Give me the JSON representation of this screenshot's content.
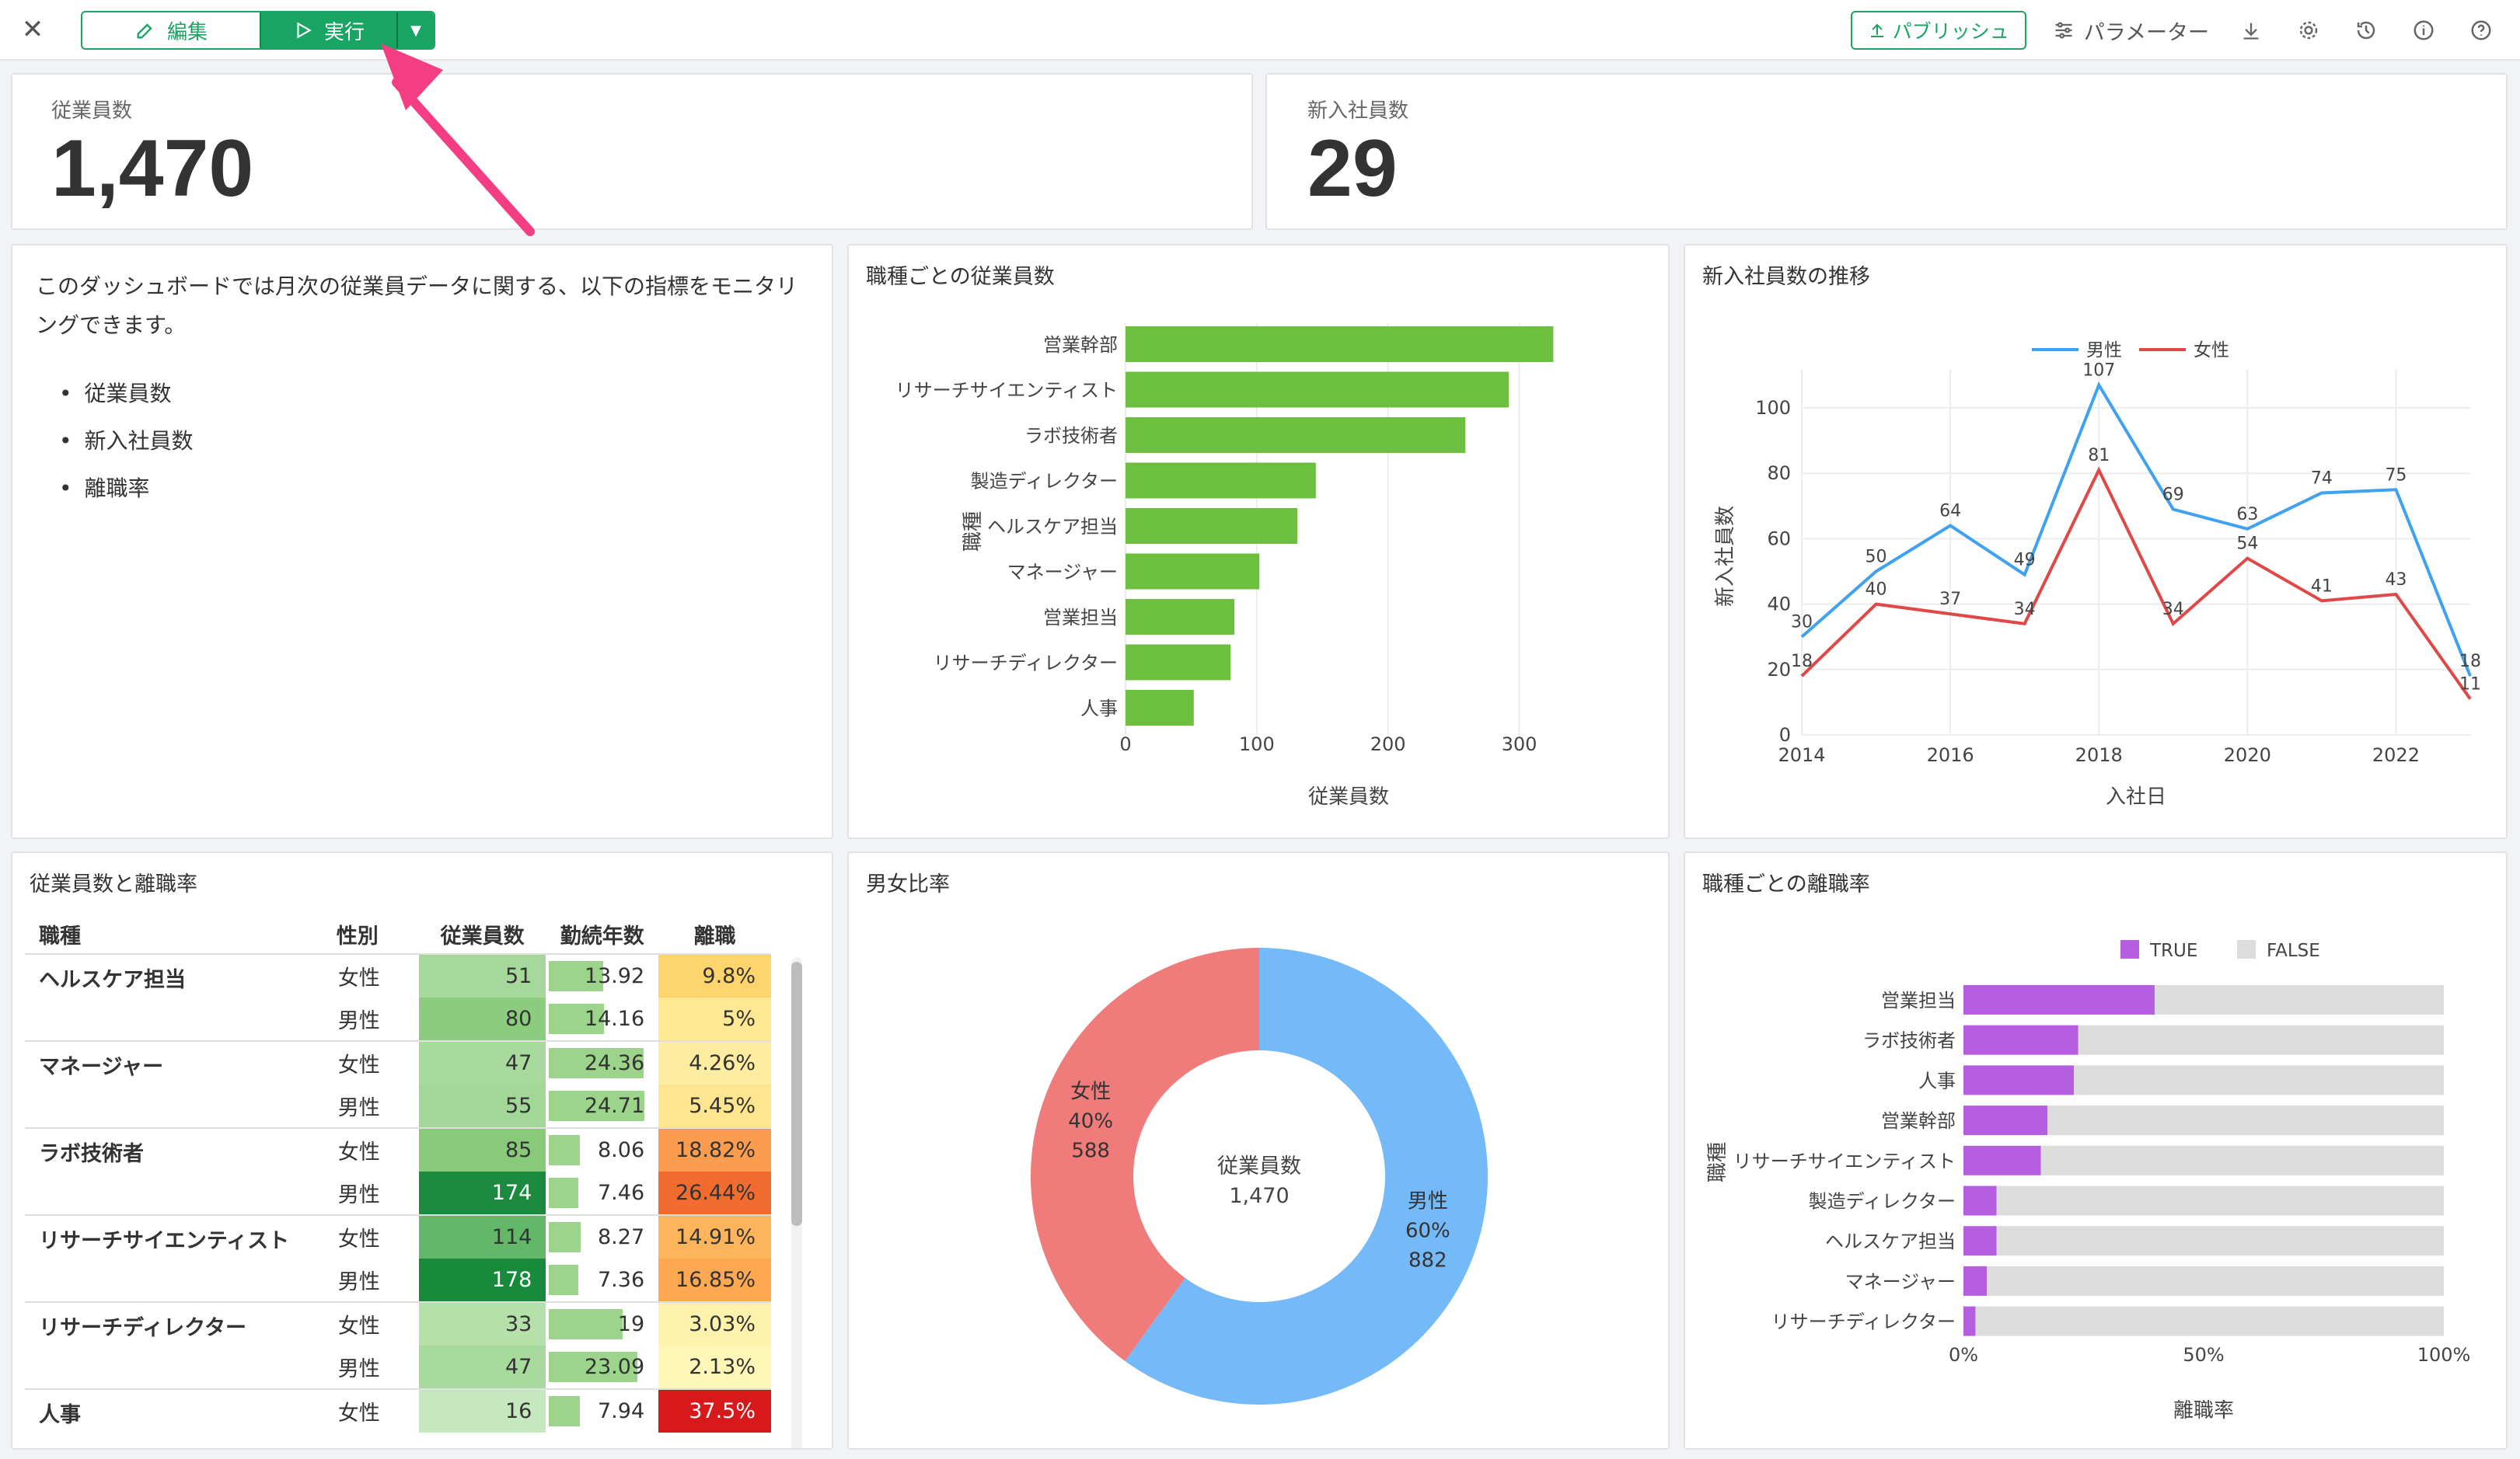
{
  "toolbar": {
    "edit_label": "編集",
    "run_label": "実行",
    "publish_label": "パブリッシュ",
    "parameter_label": "パラメーター"
  },
  "kpi": [
    {
      "label": "従業員数",
      "value": "1,470"
    },
    {
      "label": "新入社員数",
      "value": "29"
    }
  ],
  "description": {
    "text": "このダッシュボードでは月次の従業員データに関する、以下の指標をモニタリングできます。",
    "items": [
      "従業員数",
      "新入社員数",
      "離職率"
    ]
  },
  "colors": {
    "accent": "#19a463",
    "bar_green": "#6dbf3f",
    "male": "#3fa1f0",
    "female": "#e04848",
    "donut_male": "#74b9f8",
    "donut_female": "#ef7b7b",
    "true_purple": "#b55fe0",
    "false_gray": "#dcdcdc",
    "arrow": "#f43d83"
  },
  "titles": {
    "jobs_chart": "職種ごとの従業員数",
    "hires_chart": "新入社員数の推移",
    "table": "従業員数と離職率",
    "gender": "男女比率",
    "attrition": "職種ごとの離職率"
  },
  "table": {
    "headers": [
      "職種",
      "性別",
      "従業員数",
      "勤続年数",
      "離職"
    ],
    "rows": [
      {
        "job": "ヘルスケア担当",
        "sex": "女性",
        "count": "51",
        "years": "13.92",
        "rate": "9.8%",
        "count_color": "#a5d89a",
        "rate_color": "#fed46c",
        "years_frac": 0.56
      },
      {
        "job": "",
        "sex": "男性",
        "count": "80",
        "years": "14.16",
        "rate": "5%",
        "count_color": "#8ccc7e",
        "rate_color": "#fee894",
        "years_frac": 0.57
      },
      {
        "job": "マネージャー",
        "sex": "女性",
        "count": "47",
        "years": "24.36",
        "rate": "4.26%",
        "count_color": "#a8da9d",
        "rate_color": "#feeca0",
        "years_frac": 0.98
      },
      {
        "job": "",
        "sex": "男性",
        "count": "55",
        "years": "24.71",
        "rate": "5.45%",
        "count_color": "#a2d797",
        "rate_color": "#fee690",
        "years_frac": 0.99
      },
      {
        "job": "ラボ技術者",
        "sex": "女性",
        "count": "85",
        "years": "8.06",
        "rate": "18.82%",
        "count_color": "#88ca7a",
        "rate_color": "#fc9c4e",
        "years_frac": 0.32
      },
      {
        "job": "",
        "sex": "男性",
        "count": "174",
        "years": "7.46",
        "rate": "26.44%",
        "count_color": "#1c8a3e",
        "rate_color": "#f26b2f",
        "years_frac": 0.3
      },
      {
        "job": "リサーチサイエンティスト",
        "sex": "女性",
        "count": "114",
        "years": "8.27",
        "rate": "14.91%",
        "count_color": "#62b768",
        "rate_color": "#feb45a",
        "years_frac": 0.33
      },
      {
        "job": "",
        "sex": "男性",
        "count": "178",
        "years": "7.36",
        "rate": "16.85%",
        "count_color": "#188a3c",
        "rate_color": "#fea852",
        "years_frac": 0.3
      },
      {
        "job": "リサーチディレクター",
        "sex": "女性",
        "count": "33",
        "years": "19",
        "rate": "3.03%",
        "count_color": "#b5e0aa",
        "rate_color": "#fff2ad",
        "years_frac": 0.76
      },
      {
        "job": "",
        "sex": "男性",
        "count": "47",
        "years": "23.09",
        "rate": "2.13%",
        "count_color": "#a8da9d",
        "rate_color": "#fff6b8",
        "years_frac": 0.92
      },
      {
        "job": "人事",
        "sex": "女性",
        "count": "16",
        "years": "7.94",
        "rate": "37.5%",
        "count_color": "#c6e8be",
        "rate_color": "#d7191c",
        "years_frac": 0.32
      }
    ]
  },
  "chart_data": [
    {
      "type": "bar",
      "orientation": "horizontal",
      "title": "職種ごとの従業員数",
      "categories": [
        "営業幹部",
        "リサーチサイエンティスト",
        "ラボ技術者",
        "製造ディレクター",
        "ヘルスケア担当",
        "マネージャー",
        "営業担当",
        "リサーチディレクター",
        "人事"
      ],
      "values": [
        326,
        292,
        259,
        145,
        131,
        102,
        83,
        80,
        52
      ],
      "xlabel": "従業員数",
      "ylabel": "職種",
      "xlim": [
        0,
        340
      ],
      "xticks": [
        0,
        100,
        200,
        300
      ]
    },
    {
      "type": "line",
      "title": "新入社員数の推移",
      "x": [
        2014,
        2015,
        2016,
        2017,
        2018,
        2019,
        2020,
        2021,
        2022,
        2023
      ],
      "series": [
        {
          "name": "男性",
          "values": [
            30,
            50,
            64,
            49,
            107,
            69,
            63,
            74,
            75,
            18
          ]
        },
        {
          "name": "女性",
          "values": [
            18,
            40,
            37,
            34,
            81,
            34,
            54,
            41,
            43,
            11
          ]
        }
      ],
      "xlabel": "入社日",
      "ylabel": "新入社員数",
      "ylim": [
        0,
        115
      ],
      "yticks": [
        0,
        20,
        40,
        60,
        80,
        100
      ],
      "xticks": [
        2014,
        2016,
        2018,
        2020,
        2022
      ],
      "legend": "top"
    },
    {
      "type": "pie",
      "title": "男女比率",
      "center_label": "従業員数",
      "center_value": "1,470",
      "slices": [
        {
          "label": "男性",
          "percent": "60%",
          "value": 882
        },
        {
          "label": "女性",
          "percent": "40%",
          "value": 588
        }
      ]
    },
    {
      "type": "bar",
      "orientation": "horizontal",
      "stacked": true,
      "title": "職種ごとの離職率",
      "categories": [
        "営業担当",
        "ラボ技術者",
        "人事",
        "営業幹部",
        "リサーチサイエンティスト",
        "製造ディレクター",
        "ヘルスケア担当",
        "マネージャー",
        "リサーチディレクター"
      ],
      "series": [
        {
          "name": "TRUE",
          "values": [
            39.8,
            23.9,
            23.0,
            17.5,
            16.1,
            6.9,
            6.9,
            4.9,
            2.5
          ]
        },
        {
          "name": "FALSE",
          "values": [
            60.2,
            76.1,
            77.0,
            82.5,
            83.9,
            93.1,
            93.1,
            95.1,
            97.5
          ]
        }
      ],
      "xlabel": "離職率",
      "ylabel": "職種",
      "xticks": [
        "0%",
        "50%",
        "100%"
      ],
      "legend": "top"
    }
  ]
}
